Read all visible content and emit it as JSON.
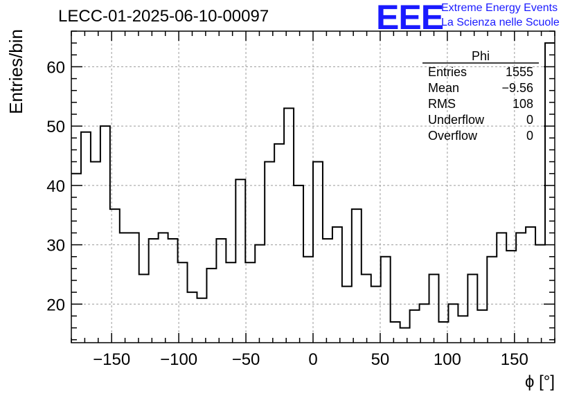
{
  "header": {
    "run_title": "LECC-01-2025-06-10-00097",
    "logo_text": "EEE",
    "logo_line1": "Extreme Energy Events",
    "logo_line2": "La Scienza nelle Scuole",
    "logo_color": "#1a1aff"
  },
  "chart_data": {
    "type": "histogram",
    "title": "",
    "xlabel": "ϕ [°]",
    "ylabel": "Entries/bin",
    "xlim": [
      -180,
      180
    ],
    "ylim": [
      13.5,
      66
    ],
    "bin_width": 7.2,
    "x_ticks": [
      -150,
      -100,
      -50,
      0,
      50,
      100,
      150
    ],
    "x_tick_labels": [
      "−150",
      "−100",
      "−50",
      "0",
      "50",
      "100",
      "150"
    ],
    "y_ticks": [
      20,
      30,
      40,
      50,
      60
    ],
    "y_tick_labels": [
      "20",
      "30",
      "40",
      "50",
      "60"
    ],
    "grid": true,
    "line_color": "#000000",
    "counts": [
      42,
      49,
      44,
      50,
      36,
      32,
      32,
      25,
      31,
      32,
      31,
      27,
      22,
      21,
      26,
      31,
      27,
      41,
      27,
      30,
      44,
      47,
      53,
      40,
      28,
      44,
      31,
      33,
      23,
      36,
      25,
      23,
      28,
      17,
      16,
      19,
      20,
      25,
      17,
      20,
      18,
      25,
      19,
      28,
      32,
      29,
      32,
      33,
      30,
      64
    ],
    "stats": {
      "name": "Phi",
      "rows": [
        {
          "label": "Entries",
          "value": "1555"
        },
        {
          "label": "Mean",
          "value": "−9.56"
        },
        {
          "label": "RMS",
          "value": "108"
        },
        {
          "label": "Underflow",
          "value": "0"
        },
        {
          "label": "Overflow",
          "value": "0"
        }
      ]
    }
  }
}
